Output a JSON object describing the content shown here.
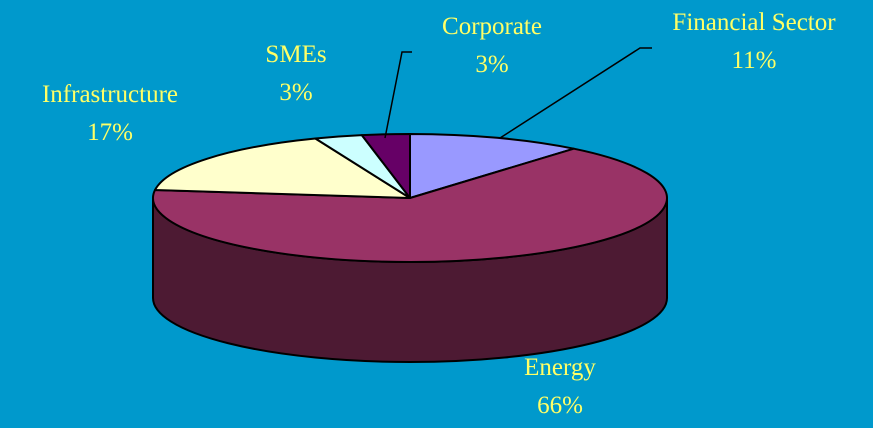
{
  "colors": {
    "background": "#0099CC",
    "label_text": "#FFFF66",
    "outline": "#000000"
  },
  "chart_data": {
    "type": "pie",
    "three_d": true,
    "start_angle_deg": 0,
    "direction": "clockwise",
    "slices": [
      {
        "label": "Financial Sector",
        "value": 11,
        "value_text": "11%",
        "color": "#9999FF",
        "side_color": "#5C5C99"
      },
      {
        "label": "Energy",
        "value": 66,
        "value_text": "66%",
        "color": "#993366",
        "side_color": "#4D1A33"
      },
      {
        "label": "Infrastructure",
        "value": 17,
        "value_text": "17%",
        "color": "#FFFFCC",
        "side_color": "#99997A"
      },
      {
        "label": "SMEs",
        "value": 3,
        "value_text": "3%",
        "color": "#CCFFFF",
        "side_color": "#7A9999"
      },
      {
        "label": "Corporate",
        "value": 3,
        "value_text": "3%",
        "color": "#660066",
        "side_color": "#330033"
      }
    ]
  }
}
